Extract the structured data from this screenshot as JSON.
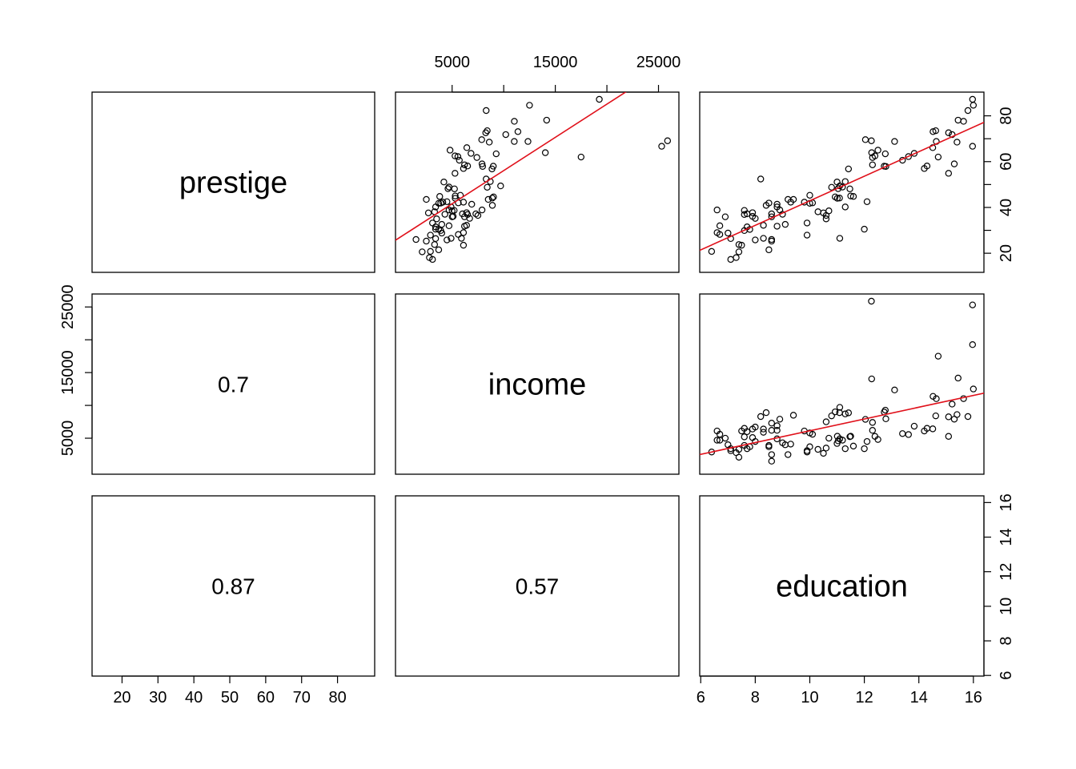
{
  "chart_data": {
    "type": "scatter",
    "layout": "pairs-matrix",
    "variables": [
      "prestige",
      "income",
      "education"
    ],
    "lower_panel": "correlation",
    "correlations": [
      {
        "row": "income",
        "col": "prestige",
        "value": "0.7"
      },
      {
        "row": "education",
        "col": "prestige",
        "value": "0.87"
      },
      {
        "row": "education",
        "col": "income",
        "value": "0.57"
      }
    ],
    "axes": {
      "prestige": {
        "range": [
          14.8,
          87.2
        ],
        "ticks": [
          20,
          30,
          40,
          50,
          60,
          70,
          80
        ],
        "right_ticks": [
          20,
          30,
          40,
          50,
          60,
          70,
          80
        ],
        "right_tick_labels": [
          "20",
          "40",
          "60",
          "80"
        ]
      },
      "income": {
        "range": [
          611,
          25879
        ],
        "ticks": [
          5000,
          10000,
          15000,
          20000,
          25000
        ],
        "tick_labels": [
          "5000",
          "15000",
          "25000"
        ]
      },
      "education": {
        "range": [
          6.38,
          15.97
        ],
        "ticks": [
          6,
          8,
          10,
          12,
          14,
          16
        ]
      }
    },
    "fit_line_color": "#e0101a",
    "point_style": "open-circle",
    "fits": {
      "prestige_vs_income": {
        "intercept": 27.1,
        "slope": 0.0029
      },
      "prestige_vs_education": {
        "intercept": -10.7,
        "slope": 5.36
      },
      "income_vs_education": {
        "intercept": -2850,
        "slope": 898
      }
    },
    "points": [
      [
        13.11,
        12351,
        68.8
      ],
      [
        12.26,
        25879,
        69.1
      ],
      [
        12.77,
        9271,
        63.4
      ],
      [
        11.42,
        8865,
        56.8
      ],
      [
        14.62,
        8403,
        73.5
      ],
      [
        15.64,
        11030,
        77.6
      ],
      [
        15.09,
        8258,
        72.6
      ],
      [
        15.44,
        14163,
        78.1
      ],
      [
        14.52,
        11377,
        73.1
      ],
      [
        14.64,
        11023,
        68.8
      ],
      [
        14.71,
        17498,
        62.0
      ],
      [
        15.09,
        5280,
        54.9
      ],
      [
        15.97,
        19263,
        87.2
      ],
      [
        13.62,
        5558,
        62.2
      ],
      [
        12.73,
        8990,
        58.0
      ],
      [
        14.51,
        6425,
        66.1
      ],
      [
        13.83,
        6830,
        63.6
      ],
      [
        12.79,
        7956,
        57.9
      ],
      [
        12.39,
        5280,
        62.5
      ],
      [
        15.97,
        25308,
        66.7
      ],
      [
        11.09,
        8895,
        44.1
      ],
      [
        10.8,
        8403,
        48.8
      ],
      [
        12.27,
        14032,
        63.9
      ],
      [
        15.22,
        10200,
        71.8
      ],
      [
        12.04,
        7868,
        69.6
      ],
      [
        11.47,
        5230,
        48.1
      ],
      [
        10.93,
        9015,
        44.6
      ],
      [
        11.01,
        5300,
        44.0
      ],
      [
        11.04,
        4600,
        48.2
      ],
      [
        12.1,
        4500,
        42.5
      ],
      [
        15.3,
        7900,
        59.0
      ],
      [
        14.2,
        6100,
        57.0
      ],
      [
        16.0,
        12500,
        84.6
      ],
      [
        15.8,
        8300,
        82.3
      ],
      [
        13.4,
        5700,
        60.6
      ],
      [
        12.3,
        7400,
        61.8
      ],
      [
        12.5,
        4800,
        65.0
      ],
      [
        15.4,
        8600,
        68.5
      ],
      [
        14.3,
        6500,
        58.1
      ],
      [
        12.3,
        6200,
        58.6
      ],
      [
        11.3,
        8700,
        51.3
      ],
      [
        10.6,
        7500,
        36.5
      ],
      [
        11.0,
        4200,
        51.1
      ],
      [
        11.5,
        5300,
        45.0
      ],
      [
        10.7,
        5000,
        38.5
      ],
      [
        10.0,
        3700,
        41.8
      ],
      [
        11.1,
        9700,
        49.4
      ],
      [
        9.4,
        8500,
        43.5
      ],
      [
        11.2,
        4700,
        48.9
      ],
      [
        9.8,
        6100,
        42.3
      ],
      [
        10.1,
        5600,
        42.0
      ],
      [
        8.8,
        4900,
        40.2
      ],
      [
        10.3,
        3300,
        38.1
      ],
      [
        11.6,
        3800,
        44.8
      ],
      [
        8.6,
        6200,
        35.9
      ],
      [
        11.1,
        4900,
        26.5
      ],
      [
        8.2,
        8300,
        52.4
      ],
      [
        8.6,
        7300,
        37.2
      ],
      [
        7.8,
        3700,
        30.4
      ],
      [
        9.9,
        3100,
        33.2
      ],
      [
        11.3,
        3400,
        40.2
      ],
      [
        8.3,
        5900,
        26.5
      ],
      [
        10.6,
        3500,
        35.0
      ],
      [
        9.9,
        2900,
        27.9
      ],
      [
        8.6,
        2500,
        25.3
      ],
      [
        8.0,
        6700,
        35.2
      ],
      [
        7.4,
        3300,
        23.8
      ],
      [
        9.3,
        4100,
        42.3
      ],
      [
        8.4,
        8900,
        40.9
      ],
      [
        8.8,
        6900,
        41.4
      ],
      [
        7.6,
        6500,
        36.9
      ],
      [
        9.1,
        4000,
        32.6
      ],
      [
        7.5,
        6100,
        23.5
      ],
      [
        7.0,
        4000,
        28.8
      ],
      [
        6.9,
        5000,
        35.9
      ],
      [
        6.4,
        2900,
        20.8
      ],
      [
        6.7,
        4700,
        32.0
      ],
      [
        7.7,
        3400,
        31.5
      ],
      [
        6.6,
        4700,
        38.9
      ],
      [
        7.1,
        3400,
        26.4
      ],
      [
        7.9,
        6400,
        37.7
      ],
      [
        8.5,
        3900,
        41.9
      ],
      [
        8.3,
        6400,
        32.2
      ],
      [
        10.0,
        5800,
        45.3
      ],
      [
        7.9,
        5100,
        36.1
      ],
      [
        8.9,
        7900,
        38.9
      ],
      [
        7.7,
        6000,
        37.2
      ],
      [
        7.4,
        2100,
        20.6
      ],
      [
        6.6,
        6100,
        29.0
      ],
      [
        8.5,
        3700,
        21.5
      ],
      [
        7.3,
        2800,
        18.1
      ],
      [
        7.6,
        3900,
        29.9
      ],
      [
        7.6,
        5200,
        38.7
      ],
      [
        8.8,
        6200,
        31.8
      ],
      [
        6.7,
        5600,
        28.2
      ],
      [
        8.6,
        1500,
        26.0
      ],
      [
        9.0,
        4300,
        37.0
      ],
      [
        10.5,
        2700,
        37.6
      ],
      [
        7.1,
        3100,
        17.3
      ],
      [
        8.0,
        4500,
        25.8
      ],
      [
        9.2,
        2500,
        43.5
      ],
      [
        12.0,
        3400,
        30.5
      ]
    ]
  }
}
